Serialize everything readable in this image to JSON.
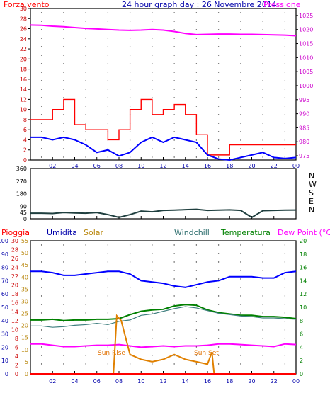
{
  "chart_data": [
    {
      "type": "line",
      "title": "24 hour graph day : 26 Novembre 2014",
      "left_label": "Forza vento",
      "right_label": "Pressione",
      "x_ticks": [
        "02",
        "04",
        "06",
        "08",
        "10",
        "12",
        "14",
        "16",
        "18",
        "20",
        "22",
        "00"
      ],
      "y_left_ticks": [
        0,
        2,
        4,
        6,
        8,
        10,
        12,
        14,
        16,
        18,
        20,
        22,
        24,
        26,
        28,
        30
      ],
      "y_left_range": [
        0,
        30
      ],
      "y_right_ticks": [
        975,
        980,
        985,
        990,
        995,
        1000,
        1005,
        1010,
        1015,
        1020,
        1025
      ],
      "y_right_range": [
        973.5,
        1027.5
      ],
      "colors": {
        "gust": "#ff0000",
        "speed": "#0000ff",
        "pressure": "#ff00ff",
        "title": "#0000aa"
      },
      "series": [
        {
          "values_hour": [
            1,
            2,
            3,
            4,
            5,
            6,
            7,
            8,
            9,
            10,
            11,
            12,
            13,
            14,
            15,
            16,
            17,
            18,
            19,
            20,
            21,
            22,
            23,
            24
          ],
          "pressure": [
            1021.5,
            1021.2,
            1021.0,
            1020.7,
            1020.4,
            1020.2,
            1020.0,
            1019.8,
            1019.7,
            1019.8,
            1020.0,
            1019.8,
            1019.3,
            1018.6,
            1018.2,
            1018.3,
            1018.4,
            1018.4,
            1018.3,
            1018.3,
            1018.2,
            1018.1,
            1018.0,
            1017.8
          ]
        },
        {
          "gust_hour": [
            1,
            2,
            3,
            4,
            5,
            6,
            7,
            8,
            9,
            10,
            11,
            12,
            13,
            14,
            15,
            16,
            17,
            18,
            19,
            20,
            21,
            22,
            23,
            24
          ],
          "gust": [
            8,
            8,
            10,
            12,
            7,
            6,
            6,
            4,
            6,
            10,
            12,
            9,
            10,
            11,
            9,
            5,
            1,
            1,
            3,
            3,
            3,
            3,
            3,
            3
          ]
        },
        {
          "speed_hour": [
            1,
            2,
            3,
            4,
            5,
            6,
            7,
            8,
            9,
            10,
            11,
            12,
            13,
            14,
            15,
            16,
            17,
            18,
            19,
            20,
            21,
            22,
            23,
            24
          ],
          "speed": [
            4.5,
            4,
            4.5,
            4,
            3,
            1.5,
            2,
            0.8,
            1.5,
            3.5,
            4.5,
            3.5,
            4.5,
            4,
            3.5,
            1,
            0.2,
            0,
            0.5,
            1,
            1.5,
            0.5,
            0.3,
            0.5
          ]
        }
      ]
    },
    {
      "type": "line",
      "right_labels": [
        "N",
        "W",
        "S",
        "E",
        "N"
      ],
      "y_ticks": [
        0,
        45,
        90,
        180,
        270,
        360
      ],
      "y_range": [
        0,
        360
      ],
      "x_ticks": [
        "02",
        "04",
        "06",
        "08",
        "10",
        "12",
        "14",
        "16",
        "18",
        "20",
        "22",
        "00"
      ],
      "series": [
        {
          "hours": [
            1,
            2,
            3,
            4,
            5,
            6,
            7,
            8,
            9,
            10,
            11,
            12,
            13,
            14,
            15,
            16,
            17,
            18,
            19,
            20,
            21,
            22,
            23,
            24
          ],
          "direction": [
            40,
            38,
            45,
            42,
            40,
            45,
            30,
            10,
            30,
            55,
            50,
            60,
            62,
            65,
            68,
            60,
            62,
            64,
            60,
            10,
            58,
            60,
            62,
            63
          ]
        }
      ]
    },
    {
      "type": "line",
      "legend": [
        "Pioggia",
        "Umidita",
        "Solar",
        "Windchill",
        "Temperatura",
        "Dew Point (°C)"
      ],
      "legend_colors": [
        "#ff0000",
        "#0000aa",
        "#b8860b",
        "#2f6f6f",
        "#008000",
        "#ff00ff"
      ],
      "axis_humidity_ticks": [
        0,
        10,
        20,
        30,
        40,
        50,
        60,
        70,
        80,
        90,
        100
      ],
      "axis_rain_ticks": [
        0,
        2,
        4,
        6,
        8,
        10,
        12,
        14,
        16,
        18,
        20,
        22,
        24,
        26,
        28,
        30
      ],
      "axis_solar_ticks": [
        0,
        5,
        10,
        15,
        20,
        25,
        30,
        35,
        40,
        45,
        50,
        55
      ],
      "axis_temp_ticks": [
        0,
        2,
        4,
        6,
        8,
        10,
        12,
        14,
        16,
        18,
        20
      ],
      "x_ticks": [
        "02",
        "04",
        "06",
        "08",
        "10",
        "12",
        "14",
        "16",
        "18",
        "20",
        "22",
        "00"
      ],
      "annotations": [
        "Sun Rise",
        "Sun Set"
      ],
      "series": [
        {
          "name": "Umidita",
          "hours": [
            1,
            2,
            3,
            4,
            5,
            6,
            7,
            8,
            9,
            10,
            11,
            12,
            13,
            14,
            15,
            16,
            17,
            18,
            19,
            20,
            21,
            22,
            23,
            24
          ],
          "values": [
            77,
            76,
            74,
            74,
            75,
            76,
            77,
            77,
            75,
            70,
            69,
            68,
            66,
            65,
            67,
            69,
            70,
            73,
            73,
            73,
            72,
            72,
            76,
            77
          ]
        },
        {
          "name": "Temperatura",
          "hours": [
            1,
            2,
            3,
            4,
            5,
            6,
            7,
            8,
            9,
            10,
            11,
            12,
            13,
            14,
            15,
            16,
            17,
            18,
            19,
            20,
            21,
            22,
            23,
            24
          ],
          "values": [
            8.1,
            8.2,
            8.0,
            8.1,
            8.1,
            8.2,
            8.2,
            8.3,
            8.9,
            9.4,
            9.6,
            9.7,
            10.2,
            10.4,
            10.3,
            9.6,
            9.2,
            9.0,
            8.8,
            8.8,
            8.6,
            8.6,
            8.5,
            8.3
          ]
        },
        {
          "name": "Windchill",
          "hours": [
            1,
            2,
            3,
            4,
            5,
            6,
            7,
            8,
            9,
            10,
            11,
            12,
            13,
            14,
            15,
            16,
            17,
            18,
            19,
            20,
            21,
            22,
            23,
            24
          ],
          "values": [
            7.2,
            7.0,
            7.1,
            7.3,
            7.4,
            7.6,
            7.4,
            7.9,
            8.1,
            8.8,
            9.0,
            9.4,
            9.8,
            10.1,
            9.9,
            9.5,
            9.1,
            8.9,
            8.7,
            8.6,
            8.4,
            8.4,
            8.3,
            8.2
          ]
        },
        {
          "name": "Dew Point",
          "hours": [
            1,
            2,
            3,
            4,
            5,
            6,
            7,
            8,
            9,
            10,
            11,
            12,
            13,
            14,
            15,
            16,
            17,
            18,
            19,
            20,
            21,
            22,
            23,
            24
          ],
          "values": [
            4.5,
            4.3,
            4.1,
            4.1,
            4.2,
            4.3,
            4.3,
            4.4,
            4.2,
            4.0,
            4.1,
            4.2,
            4.1,
            4.2,
            4.2,
            4.3,
            4.5,
            4.5,
            4.4,
            4.3,
            4.2,
            4.1,
            4.5,
            4.4
          ]
        },
        {
          "name": "Solar",
          "hours": [
            7.5,
            7.8,
            8.2,
            9,
            10,
            11,
            12,
            13,
            14,
            15,
            16,
            16.4,
            16.6
          ],
          "values": [
            0,
            24,
            22,
            8,
            6,
            5,
            6,
            8,
            6,
            5,
            4,
            9,
            0
          ]
        },
        {
          "name": "Pioggia",
          "hours": [
            0,
            24
          ],
          "values": [
            0,
            0
          ]
        }
      ]
    }
  ]
}
